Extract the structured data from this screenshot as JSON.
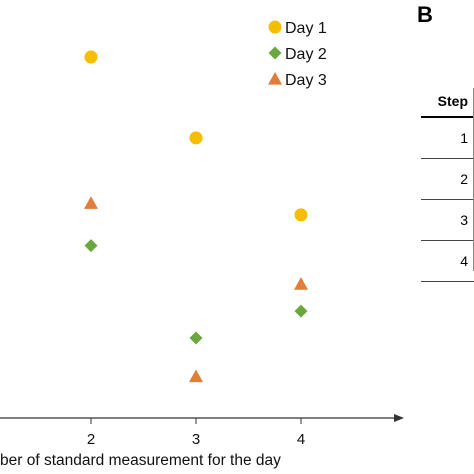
{
  "chart_data": {
    "type": "scatter",
    "xlabel": "ber of standard measurement for the day",
    "x_ticks": [
      "2",
      "3",
      "4"
    ],
    "legend_position": "top-right",
    "series": [
      {
        "name": "Day 1",
        "marker": "circle",
        "color": "#f5be00",
        "points": [
          [
            2,
            8.0
          ],
          [
            3,
            5.9
          ],
          [
            4,
            3.9
          ]
        ]
      },
      {
        "name": "Day 2",
        "marker": "diamond",
        "color": "#6aa83f",
        "points": [
          [
            2,
            3.1
          ],
          [
            3,
            0.7
          ],
          [
            4,
            1.4
          ]
        ]
      },
      {
        "name": "Day 3",
        "marker": "triangle",
        "color": "#e07d3a",
        "points": [
          [
            2,
            4.2
          ],
          [
            3,
            -0.3
          ],
          [
            4,
            2.1
          ]
        ]
      }
    ]
  },
  "panel_b": {
    "letter": "B",
    "table": {
      "header": "Step",
      "rows": [
        "1",
        "2",
        "3",
        "4"
      ]
    }
  }
}
